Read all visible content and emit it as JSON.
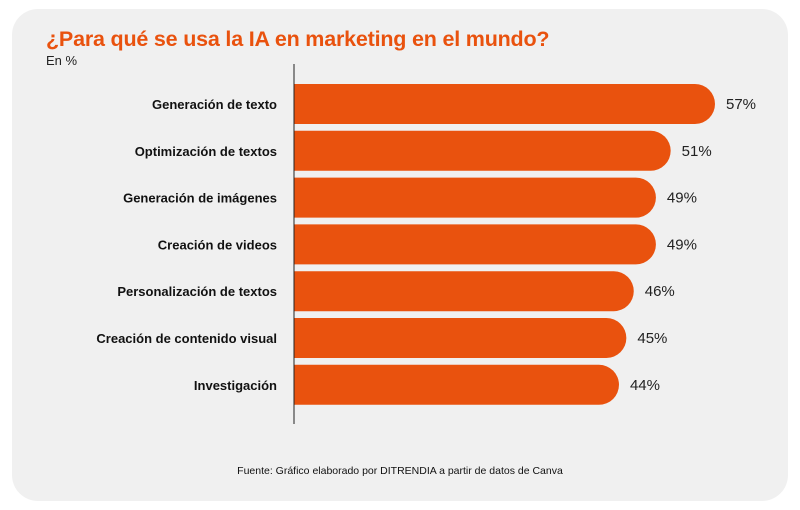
{
  "colors": {
    "bar": "#e9520e",
    "title": "#e9520e",
    "card": "#f0f0f0",
    "axis": "#222222"
  },
  "chart_data": {
    "type": "bar",
    "orientation": "horizontal",
    "title": "¿Para qué se usa la IA en marketing en el mundo?",
    "subtitle": "En %",
    "categories": [
      "Generación de texto",
      "Optimización de textos",
      "Generación de imágenes",
      "Creación de videos",
      "Personalización de textos",
      "Creación de contenido visual",
      "Investigación"
    ],
    "values": [
      57,
      51,
      49,
      49,
      46,
      45,
      44
    ],
    "value_labels": [
      "57%",
      "51%",
      "49%",
      "49%",
      "46%",
      "45%",
      "44%"
    ],
    "grid": false,
    "legend": "none"
  },
  "source": "Fuente: Gráfico elaborado por DITRENDIA a partir de datos de Canva"
}
